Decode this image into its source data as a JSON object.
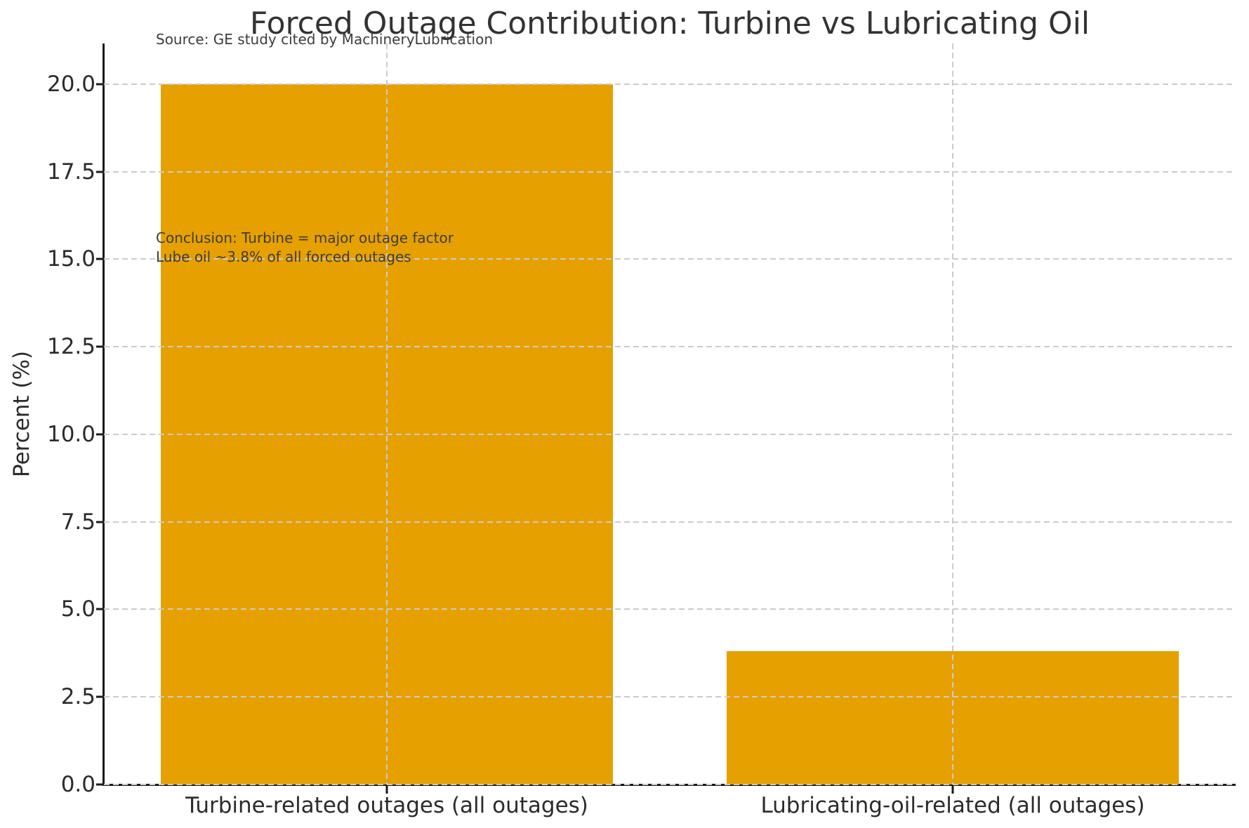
{
  "figure": {
    "title": "Forced Outage Contribution: Turbine vs Lubricating Oil",
    "source_note": "Source: GE study cited by MachineryLubrication"
  },
  "chart_data": {
    "type": "bar",
    "title": "Forced Outage Contribution: Turbine vs Lubricating Oil",
    "source_note": "Source: GE study cited by MachineryLubrication",
    "categories": [
      "Turbine-related outages (all outages)",
      "Lubricating-oil-related (all outages)"
    ],
    "values": [
      20.0,
      3.8
    ],
    "xlabel": "",
    "ylabel": "Percent (%)",
    "ylim": [
      0,
      21
    ],
    "yticks": [
      0.0,
      2.5,
      5.0,
      7.5,
      10.0,
      12.5,
      15.0,
      17.5,
      20.0
    ],
    "ytick_labels": [
      "0.0",
      "2.5",
      "5.0",
      "7.5",
      "10.0",
      "12.5",
      "15.0",
      "17.5",
      "20.0"
    ],
    "grid": "dashed gridlines on both axes, drawn above bars",
    "legend": "none",
    "annotation": {
      "line1": "Conclusion: Turbine = major outage factor",
      "line2": "Lube oil ~3.8% of all forced outages"
    },
    "colors": {
      "bar": "#E6A000",
      "grid": "#cbcbcb",
      "spine": "#1a1a1a",
      "text": "#2b2b2b",
      "title": "#333333",
      "annotation_text": "#3d3d3d",
      "background": "#ffffff"
    }
  }
}
